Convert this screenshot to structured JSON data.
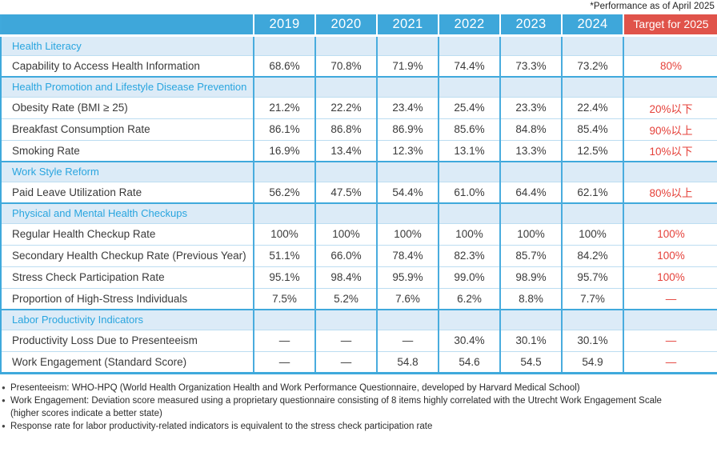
{
  "note": "*Performance as of April 2025",
  "table": {
    "header": {
      "year_columns": [
        "2019",
        "2020",
        "2021",
        "2022",
        "2023",
        "2024"
      ],
      "target_label": "Target for 2025"
    },
    "rows": [
      {
        "type": "section",
        "label": "Health Literacy"
      },
      {
        "type": "data",
        "label": "Capability to Access Health Information",
        "values": [
          "68.6%",
          "70.8%",
          "71.9%",
          "74.4%",
          "73.3%",
          "73.2%"
        ],
        "target": "80%"
      },
      {
        "type": "section",
        "label": "Health Promotion and Lifestyle Disease Prevention"
      },
      {
        "type": "data",
        "label": "Obesity Rate (BMI ≥ 25)",
        "values": [
          "21.2%",
          "22.2%",
          "23.4%",
          "25.4%",
          "23.3%",
          "22.4%"
        ],
        "target": "20%以下"
      },
      {
        "type": "data",
        "label": "Breakfast Consumption Rate",
        "values": [
          "86.1%",
          "86.8%",
          "86.9%",
          "85.6%",
          "84.8%",
          "85.4%"
        ],
        "target": "90%以上"
      },
      {
        "type": "data",
        "label": "Smoking Rate",
        "values": [
          "16.9%",
          "13.4%",
          "12.3%",
          "13.1%",
          "13.3%",
          "12.5%"
        ],
        "target": "10%以下"
      },
      {
        "type": "section",
        "label": "Work Style Reform"
      },
      {
        "type": "data",
        "label": "Paid Leave Utilization Rate",
        "values": [
          "56.2%",
          "47.5%",
          "54.4%",
          "61.0%",
          "64.4%",
          "62.1%"
        ],
        "target": "80%以上"
      },
      {
        "type": "section",
        "label": "Physical and Mental Health Checkups"
      },
      {
        "type": "data",
        "label": "Regular Health Checkup Rate",
        "values": [
          "100%",
          "100%",
          "100%",
          "100%",
          "100%",
          "100%"
        ],
        "target": "100%"
      },
      {
        "type": "data",
        "label": "Secondary Health Checkup Rate (Previous Year)",
        "values": [
          "51.1%",
          "66.0%",
          "78.4%",
          "82.3%",
          "85.7%",
          "84.2%"
        ],
        "target": "100%"
      },
      {
        "type": "data",
        "label": "Stress Check Participation Rate",
        "values": [
          "95.1%",
          "98.4%",
          "95.9%",
          "99.0%",
          "98.9%",
          "95.7%"
        ],
        "target": "100%"
      },
      {
        "type": "data",
        "label": "Proportion of High-Stress Individuals",
        "values": [
          "7.5%",
          "5.2%",
          "7.6%",
          "6.2%",
          "8.8%",
          "7.7%"
        ],
        "target": "—"
      },
      {
        "type": "section",
        "label": "Labor Productivity Indicators"
      },
      {
        "type": "data",
        "label": "Productivity Loss Due to Presenteeism",
        "values": [
          "—",
          "—",
          "—",
          "30.4%",
          "30.1%",
          "30.1%"
        ],
        "target": "—"
      },
      {
        "type": "data",
        "label": "Work Engagement (Standard Score)",
        "values": [
          "—",
          "—",
          "54.8",
          "54.6",
          "54.5",
          "54.9"
        ],
        "target": "—"
      }
    ]
  },
  "footnotes": [
    {
      "lines": [
        "Presenteeism: WHO-HPQ (World Health Organization Health and Work Performance Questionnaire, developed by Harvard Medical School)"
      ]
    },
    {
      "lines": [
        "Work Engagement: Deviation score measured using a proprietary questionnaire consisting of 8 items highly correlated with the Utrecht Work Engagement Scale",
        "(higher scores indicate a better state)"
      ]
    },
    {
      "lines": [
        "Response rate for labor productivity-related indicators is equivalent to the stress check participation rate"
      ]
    }
  ],
  "colors": {
    "header_blue": "#3EA7DA",
    "mid_blue": "#49ACDE",
    "main_blue": "#3FA9DC",
    "section_bg": "#DCEBF7",
    "section_text": "#29A5DF",
    "target_red_bg": "#E0534A",
    "target_red_text": "#E5413A",
    "thin_line": "#BCDDF1",
    "text_dark": "#3A3A3A"
  }
}
